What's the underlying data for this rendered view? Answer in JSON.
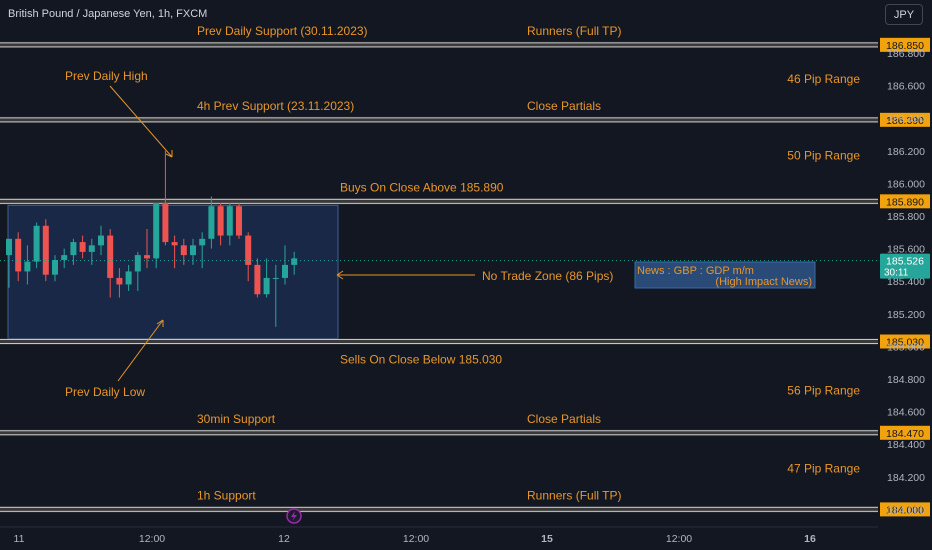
{
  "header": {
    "symbol_title": "British Pound / Japanese Yen, 1h, FXCM",
    "currency": "JPY"
  },
  "price_axis": {
    "ticks": [
      "186.800",
      "186.600",
      "186.400",
      "186.200",
      "186.000",
      "185.800",
      "185.600",
      "185.400",
      "185.200",
      "185.000",
      "184.800",
      "184.600",
      "184.400",
      "184.200",
      "184.000"
    ],
    "current_price": "185.526",
    "countdown": "30:11"
  },
  "time_axis": {
    "ticks": [
      "11",
      "12:00",
      "12",
      "12:00",
      "15",
      "12:00",
      "16"
    ]
  },
  "levels": [
    {
      "price": 186.85,
      "tag": "186.850",
      "left_label": "Prev Daily Support (30.11.2023)",
      "right_label": "Runners (Full TP)"
    },
    {
      "price": 186.39,
      "tag": "186.390",
      "left_label": "4h Prev Support (23.11.2023)",
      "right_label": "Close Partials"
    },
    {
      "price": 185.89,
      "tag": "185.890",
      "left_label": "",
      "right_label": "Buys On Close Above 185.890"
    },
    {
      "price": 185.03,
      "tag": "185.030",
      "left_label": "",
      "right_label": "Sells On Close Below 185.030"
    },
    {
      "price": 184.47,
      "tag": "184.470",
      "left_label": "30min Support",
      "right_label": "Close Partials"
    },
    {
      "price": 184.0,
      "tag": "184.000",
      "left_label": "1h Support",
      "right_label": "Runners (Full TP)"
    }
  ],
  "ranges": [
    {
      "label": "46 Pip Range",
      "price": 186.64
    },
    {
      "label": "50 Pip Range",
      "price": 186.17
    },
    {
      "label": "56 Pip Range",
      "price": 184.73
    },
    {
      "label": "47 Pip Range",
      "price": 184.25
    }
  ],
  "annotations": {
    "prev_daily_high": "Prev Daily High",
    "prev_daily_low": "Prev Daily Low",
    "no_trade_zone": "No Trade Zone (86 Pips)",
    "news_line1": "News : GBP : GDP m/m",
    "news_line2": "(High Impact News)"
  },
  "colors": {
    "background": "#131722",
    "level_line": "#c6c6c6",
    "annotation": "#e8962a",
    "bull": "#26a69a",
    "bear": "#ef5350",
    "zone_fill": "#1b2a4a",
    "zone_border": "#3f5f9a",
    "news_box": "#2a4a78",
    "current_price_tag": "#26a69a",
    "event_icon": "#9c27b0"
  },
  "event_icon": "lightning-icon",
  "chart_data": {
    "type": "candlestick",
    "title": "British Pound / Japanese Yen, 1h, FXCM",
    "ylim": [
      183.97,
      186.94
    ],
    "x_ticks": [
      "11",
      "12:00",
      "12",
      "12:00",
      "15",
      "12:00",
      "16"
    ],
    "candles": [
      {
        "o": 185.56,
        "h": 185.66,
        "l": 185.36,
        "c": 185.66
      },
      {
        "o": 185.66,
        "h": 185.7,
        "l": 185.4,
        "c": 185.46
      },
      {
        "o": 185.46,
        "h": 185.62,
        "l": 185.38,
        "c": 185.52
      },
      {
        "o": 185.52,
        "h": 185.76,
        "l": 185.48,
        "c": 185.74
      },
      {
        "o": 185.74,
        "h": 185.78,
        "l": 185.4,
        "c": 185.44
      },
      {
        "o": 185.44,
        "h": 185.56,
        "l": 185.4,
        "c": 185.53
      },
      {
        "o": 185.53,
        "h": 185.6,
        "l": 185.48,
        "c": 185.56
      },
      {
        "o": 185.56,
        "h": 185.66,
        "l": 185.5,
        "c": 185.64
      },
      {
        "o": 185.64,
        "h": 185.68,
        "l": 185.54,
        "c": 185.58
      },
      {
        "o": 185.58,
        "h": 185.66,
        "l": 185.5,
        "c": 185.62
      },
      {
        "o": 185.62,
        "h": 185.74,
        "l": 185.56,
        "c": 185.68
      },
      {
        "o": 185.68,
        "h": 185.72,
        "l": 185.3,
        "c": 185.42
      },
      {
        "o": 185.42,
        "h": 185.48,
        "l": 185.3,
        "c": 185.38
      },
      {
        "o": 185.38,
        "h": 185.5,
        "l": 185.34,
        "c": 185.46
      },
      {
        "o": 185.46,
        "h": 185.58,
        "l": 185.34,
        "c": 185.56
      },
      {
        "o": 185.56,
        "h": 185.72,
        "l": 185.48,
        "c": 185.54
      },
      {
        "o": 185.54,
        "h": 185.88,
        "l": 185.48,
        "c": 185.88
      },
      {
        "o": 185.88,
        "h": 186.2,
        "l": 185.62,
        "c": 185.64
      },
      {
        "o": 185.64,
        "h": 185.68,
        "l": 185.48,
        "c": 185.62
      },
      {
        "o": 185.62,
        "h": 185.66,
        "l": 185.5,
        "c": 185.56
      },
      {
        "o": 185.56,
        "h": 185.66,
        "l": 185.5,
        "c": 185.62
      },
      {
        "o": 185.62,
        "h": 185.7,
        "l": 185.48,
        "c": 185.66
      },
      {
        "o": 185.66,
        "h": 185.92,
        "l": 185.6,
        "c": 185.86
      },
      {
        "o": 185.86,
        "h": 185.88,
        "l": 185.62,
        "c": 185.68
      },
      {
        "o": 185.68,
        "h": 185.88,
        "l": 185.62,
        "c": 185.86
      },
      {
        "o": 185.86,
        "h": 185.88,
        "l": 185.66,
        "c": 185.68
      },
      {
        "o": 185.68,
        "h": 185.7,
        "l": 185.4,
        "c": 185.5
      },
      {
        "o": 185.5,
        "h": 185.54,
        "l": 185.3,
        "c": 185.32
      },
      {
        "o": 185.32,
        "h": 185.54,
        "l": 185.3,
        "c": 185.42
      },
      {
        "o": 185.42,
        "h": 185.5,
        "l": 185.12,
        "c": 185.42
      },
      {
        "o": 185.42,
        "h": 185.62,
        "l": 185.38,
        "c": 185.5
      },
      {
        "o": 185.5,
        "h": 185.58,
        "l": 185.44,
        "c": 185.54
      }
    ],
    "current_price": 185.526
  }
}
